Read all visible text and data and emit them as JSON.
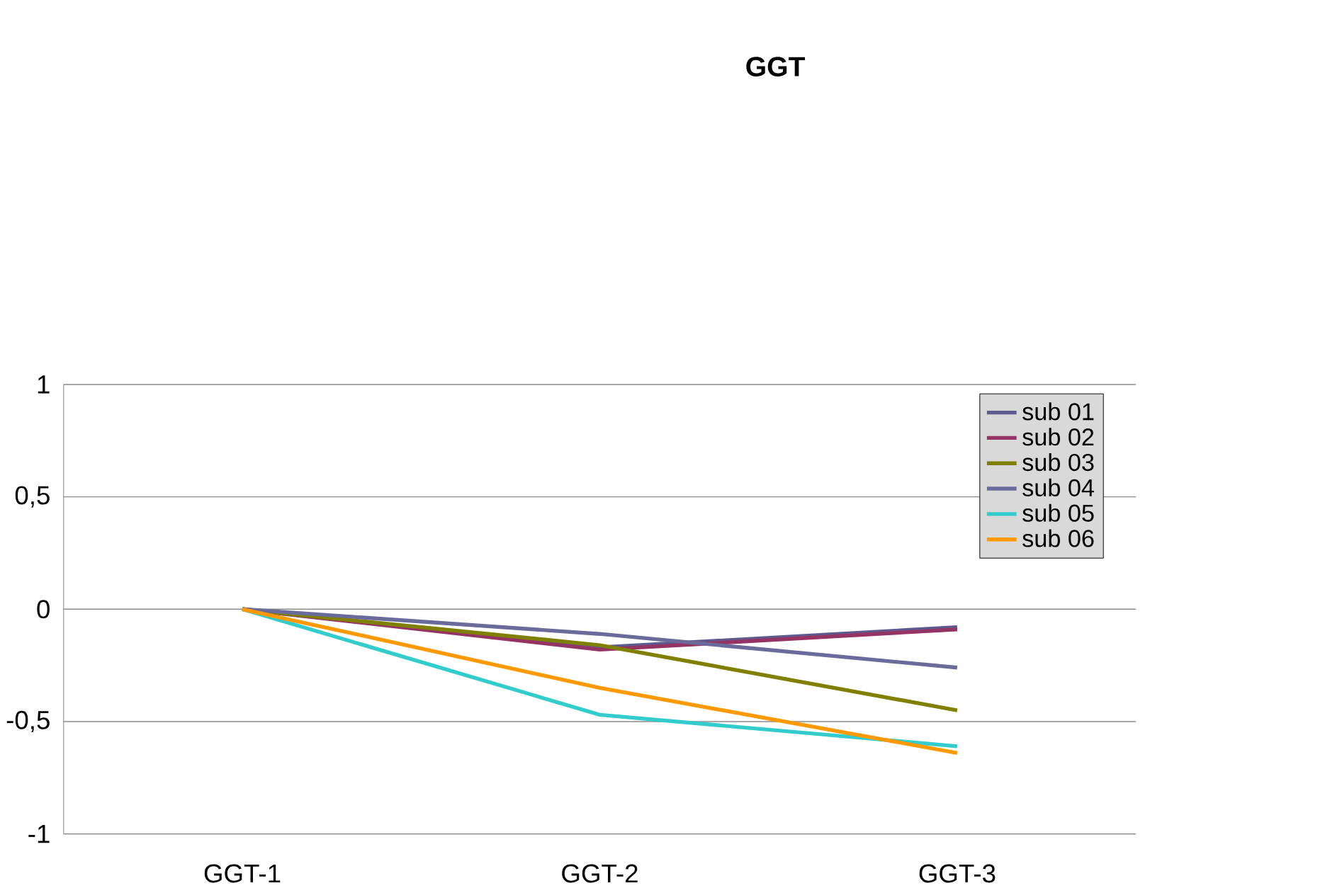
{
  "chart_data": {
    "type": "line",
    "title": "GGT",
    "categories": [
      "GGT-1",
      "GGT-2",
      "GGT-3"
    ],
    "series": [
      {
        "name": "sub 01",
        "color": "#5e5a8e",
        "values": [
          0,
          -0.17,
          -0.08
        ]
      },
      {
        "name": "sub 02",
        "color": "#943464",
        "values": [
          0,
          -0.18,
          -0.09
        ]
      },
      {
        "name": "sub 03",
        "color": "#808000",
        "values": [
          0,
          -0.16,
          -0.45
        ]
      },
      {
        "name": "sub 04",
        "color": "#6b6b9b",
        "values": [
          0,
          -0.11,
          -0.26
        ]
      },
      {
        "name": "sub 05",
        "color": "#33cccc",
        "values": [
          0,
          -0.47,
          -0.61
        ]
      },
      {
        "name": "sub 06",
        "color": "#ff9900",
        "values": [
          0,
          -0.35,
          -0.64
        ]
      }
    ],
    "ylim": [
      -1,
      1
    ],
    "yticks": [
      -1,
      {
        "value": -0.5,
        "label": "-0,5"
      },
      0,
      {
        "value": 0.5,
        "label": "0,5"
      },
      1
    ],
    "grid": "y",
    "legend": "top right",
    "marker": "none",
    "line_style": "solid"
  }
}
